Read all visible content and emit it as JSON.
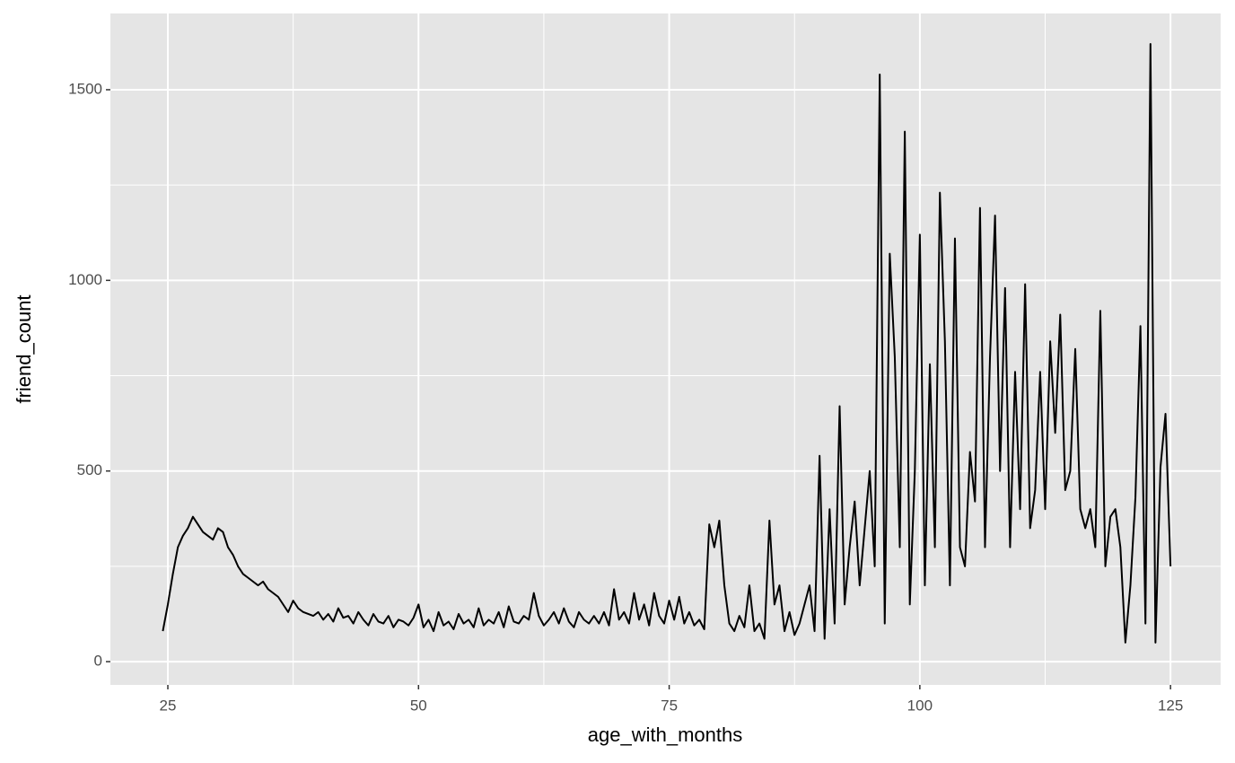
{
  "chart_data": {
    "type": "line",
    "xlabel": "age_with_months",
    "ylabel": "friend_count",
    "color": "#000000",
    "panel_color": "#e5e5e5",
    "grid": true,
    "xlim": [
      19.27,
      130.0
    ],
    "ylim": [
      -61,
      1700
    ],
    "xticks": [
      25,
      50,
      75,
      100,
      125
    ],
    "yticks": [
      0,
      500,
      1000,
      1500
    ],
    "xminor": [
      37.5,
      62.5,
      87.5,
      112.5
    ],
    "yminor": [
      250,
      750,
      1250
    ],
    "x": [
      24.5,
      25,
      25.5,
      26,
      26.5,
      27,
      27.5,
      28,
      28.5,
      29,
      29.5,
      30,
      30.5,
      31,
      31.5,
      32,
      32.5,
      33,
      33.5,
      34,
      34.5,
      35,
      35.5,
      36,
      36.5,
      37,
      37.5,
      38,
      38.5,
      39,
      39.5,
      40,
      40.5,
      41,
      41.5,
      42,
      42.5,
      43,
      43.5,
      44,
      44.5,
      45,
      45.5,
      46,
      46.5,
      47,
      47.5,
      48,
      48.5,
      49,
      49.5,
      50,
      50.5,
      51,
      51.5,
      52,
      52.5,
      53,
      53.5,
      54,
      54.5,
      55,
      55.5,
      56,
      56.5,
      57,
      57.5,
      58,
      58.5,
      59,
      59.5,
      60,
      60.5,
      61,
      61.5,
      62,
      62.5,
      63,
      63.5,
      64,
      64.5,
      65,
      65.5,
      66,
      66.5,
      67,
      67.5,
      68,
      68.5,
      69,
      69.5,
      70,
      70.5,
      71,
      71.5,
      72,
      72.5,
      73,
      73.5,
      74,
      74.5,
      75,
      75.5,
      76,
      76.5,
      77,
      77.5,
      78,
      78.5,
      79,
      79.5,
      80,
      80.5,
      81,
      81.5,
      82,
      82.5,
      83,
      83.5,
      84,
      84.5,
      85,
      85.5,
      86,
      86.5,
      87,
      87.5,
      88,
      88.5,
      89,
      89.5,
      90,
      90.5,
      91,
      91.5,
      92,
      92.5,
      93,
      93.5,
      94,
      94.5,
      95,
      95.5,
      96,
      96.5,
      97,
      97.5,
      98,
      98.5,
      99,
      99.5,
      100,
      100.5,
      101,
      101.5,
      102,
      102.5,
      103,
      103.5,
      104,
      104.5,
      105,
      105.5,
      106,
      106.5,
      107,
      107.5,
      108,
      108.5,
      109,
      109.5,
      110,
      110.5,
      111,
      111.5,
      112,
      112.5,
      113,
      113.5,
      114,
      114.5,
      115,
      115.5,
      116,
      116.5,
      117,
      117.5,
      118,
      118.5,
      119,
      119.5,
      120,
      120.5,
      121,
      121.5,
      122,
      122.5,
      123,
      123.5,
      124,
      124.5,
      125
    ],
    "values": [
      80,
      150,
      230,
      300,
      330,
      350,
      380,
      360,
      340,
      330,
      320,
      350,
      340,
      300,
      280,
      250,
      230,
      220,
      210,
      200,
      210,
      190,
      180,
      170,
      150,
      130,
      160,
      140,
      130,
      125,
      120,
      130,
      110,
      125,
      105,
      140,
      115,
      120,
      100,
      130,
      110,
      95,
      125,
      105,
      100,
      120,
      90,
      110,
      105,
      95,
      115,
      150,
      90,
      110,
      80,
      130,
      95,
      105,
      85,
      125,
      100,
      110,
      90,
      140,
      95,
      110,
      100,
      130,
      90,
      145,
      105,
      100,
      120,
      110,
      180,
      120,
      95,
      110,
      130,
      100,
      140,
      105,
      90,
      130,
      110,
      100,
      120,
      100,
      130,
      95,
      190,
      110,
      130,
      100,
      180,
      110,
      150,
      95,
      180,
      120,
      100,
      160,
      110,
      170,
      100,
      130,
      95,
      110,
      85,
      360,
      300,
      370,
      200,
      100,
      80,
      120,
      90,
      200,
      80,
      100,
      60,
      370,
      150,
      200,
      80,
      130,
      70,
      100,
      150,
      200,
      80,
      540,
      60,
      400,
      100,
      670,
      150,
      300,
      420,
      200,
      350,
      500,
      250,
      1540,
      100,
      1070,
      800,
      300,
      1390,
      150,
      500,
      1120,
      200,
      780,
      300,
      1230,
      840,
      200,
      1110,
      300,
      250,
      550,
      420,
      1190,
      300,
      800,
      1170,
      500,
      980,
      300,
      760,
      400,
      990,
      350,
      450,
      760,
      400,
      840,
      600,
      910,
      450,
      500,
      820,
      400,
      350,
      400,
      300,
      920,
      250,
      380,
      400,
      300,
      50,
      200,
      430,
      880,
      100,
      1620,
      50,
      510,
      650,
      250
    ]
  }
}
